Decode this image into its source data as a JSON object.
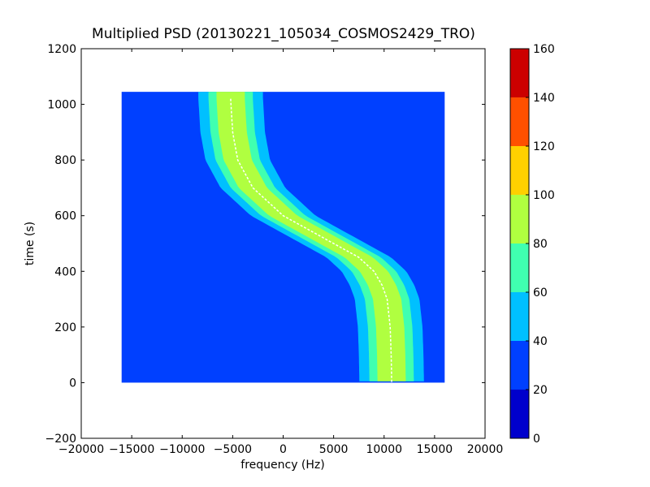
{
  "chart_data": {
    "type": "heatmap",
    "title": "Multiplied PSD (20130221_105034_COSMOS2429_TRO)",
    "xlabel": "frequency (Hz)",
    "ylabel": "time (s)",
    "xlim": [
      -20000,
      20000
    ],
    "ylim": [
      -200,
      1200
    ],
    "xticks": [
      -20000,
      -15000,
      -10000,
      -5000,
      0,
      5000,
      10000,
      15000,
      20000
    ],
    "xtick_labels": [
      "−20000",
      "−15000",
      "−10000",
      "−5000",
      "0",
      "5000",
      "10000",
      "15000",
      "20000"
    ],
    "yticks": [
      -200,
      0,
      200,
      400,
      600,
      800,
      1000,
      1200
    ],
    "ytick_labels": [
      "−200",
      "0",
      "200",
      "400",
      "600",
      "800",
      "1000",
      "1200"
    ],
    "data_extent": {
      "x": [
        -16000,
        16000
      ],
      "y": [
        0,
        1045
      ]
    },
    "background_level": 25,
    "signal_trace": {
      "description_points_time_s": [
        1020,
        900,
        800,
        700,
        650,
        600,
        550,
        500,
        450,
        400,
        350,
        300,
        200,
        100,
        0
      ],
      "frequency_hz": [
        -5200,
        -5000,
        -4500,
        -3000,
        -1500,
        0,
        2500,
        5000,
        7500,
        9000,
        9800,
        10300,
        10600,
        10700,
        10750
      ]
    },
    "colorbar": {
      "boundaries": [
        0,
        20,
        40,
        60,
        80,
        100,
        120,
        140,
        160
      ],
      "tick_labels": [
        "0",
        "20",
        "40",
        "60",
        "80",
        "100",
        "120",
        "140",
        "160"
      ],
      "colors": [
        "#0000cc",
        "#0040ff",
        "#00c0ff",
        "#40ffb0",
        "#b0ff40",
        "#ffd000",
        "#ff5000",
        "#cc0000"
      ]
    }
  }
}
